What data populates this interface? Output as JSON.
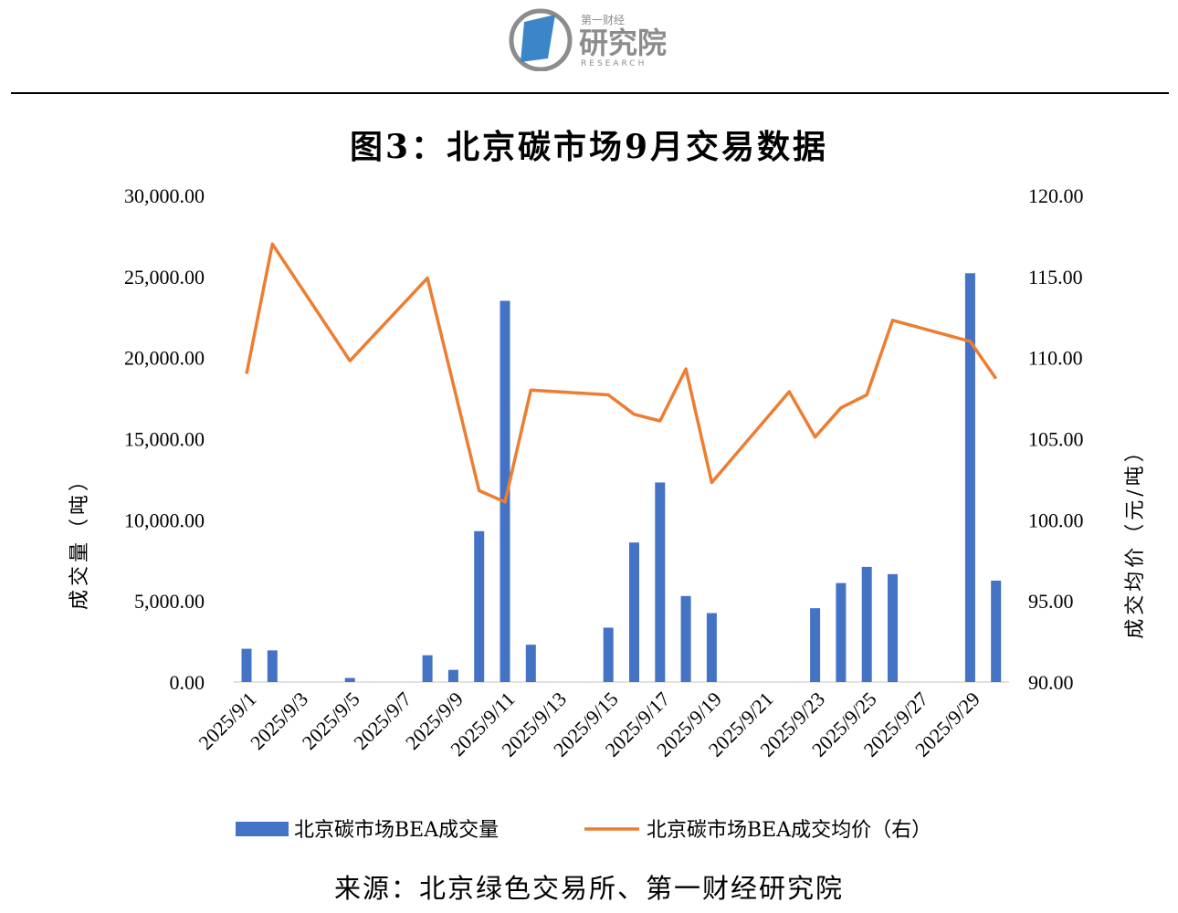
{
  "header": {
    "logo_small": "第一财经",
    "logo_big": "研究院",
    "logo_sub": "RESEARCH"
  },
  "title": "图3：北京碳市场9月交易数据",
  "source": "来源：北京绿色交易所、第一财经研究院",
  "colors": {
    "bar": "#4472C4",
    "line": "#ED7D31",
    "logo_blue": "#3A86C8",
    "logo_grey": "#8C8C8C"
  },
  "chart_data": {
    "type": "bar+line",
    "dates": [
      "2025/9/1",
      "2025/9/2",
      "2025/9/3",
      "2025/9/4",
      "2025/9/5",
      "2025/9/6",
      "2025/9/7",
      "2025/9/8",
      "2025/9/9",
      "2025/9/10",
      "2025/9/11",
      "2025/9/12",
      "2025/9/13",
      "2025/9/14",
      "2025/9/15",
      "2025/9/16",
      "2025/9/17",
      "2025/9/18",
      "2025/9/19",
      "2025/9/20",
      "2025/9/21",
      "2025/9/22",
      "2025/9/23",
      "2025/9/24",
      "2025/9/25",
      "2025/9/26",
      "2025/9/27",
      "2025/9/28",
      "2025/9/29",
      "2025/9/30"
    ],
    "x_tick_labels": [
      "2025/9/1",
      "2025/9/3",
      "2025/9/5",
      "2025/9/7",
      "2025/9/9",
      "2025/9/11",
      "2025/9/13",
      "2025/9/15",
      "2025/9/17",
      "2025/9/19",
      "2025/9/21",
      "2025/9/23",
      "2025/9/25",
      "2025/9/27",
      "2025/9/29"
    ],
    "series": [
      {
        "name": "北京碳市场BEA成交量",
        "type": "bar",
        "axis": "left",
        "values": [
          2050,
          1950,
          null,
          null,
          250,
          null,
          null,
          1650,
          750,
          9300,
          23500,
          2300,
          null,
          null,
          3350,
          8600,
          12300,
          5300,
          4250,
          null,
          null,
          null,
          4550,
          6100,
          7100,
          6650,
          null,
          null,
          25200,
          6250
        ]
      },
      {
        "name": "北京碳市场BEA成交均价（右）",
        "type": "line",
        "axis": "right",
        "values": [
          109.0,
          117.0,
          null,
          null,
          109.8,
          null,
          null,
          114.9,
          null,
          101.8,
          101.1,
          108.0,
          null,
          null,
          107.7,
          106.5,
          106.1,
          109.3,
          102.3,
          null,
          null,
          107.9,
          105.1,
          106.9,
          107.7,
          112.3,
          null,
          null,
          111.0,
          108.7
        ]
      }
    ],
    "left_axis": {
      "label": "成交量（吨）",
      "ylim": [
        0,
        30000
      ],
      "ticks": [
        "0.00",
        "5,000.00",
        "10,000.00",
        "15,000.00",
        "20,000.00",
        "25,000.00",
        "30,000.00"
      ]
    },
    "right_axis": {
      "label": "成交均价（元/吨）",
      "ylim": [
        90,
        120
      ],
      "ticks": [
        "90.00",
        "95.00",
        "100.00",
        "105.00",
        "110.00",
        "115.00",
        "120.00"
      ]
    },
    "legend_position": "bottom",
    "grid": false
  }
}
